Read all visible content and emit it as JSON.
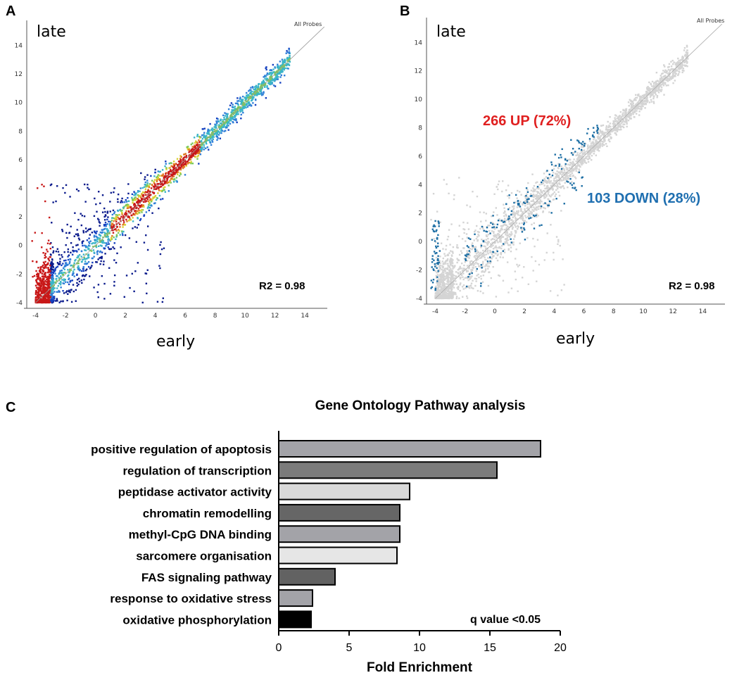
{
  "chart_data": [
    {
      "type": "scatter",
      "panel": "A",
      "xlabel": "early",
      "ylabel": "late",
      "series_label": "All Probes",
      "annotation": "R2 = 0.98",
      "xlim": [
        -4.5,
        15.5
      ],
      "ylim": [
        -4.2,
        15.5
      ],
      "x_ticks": [
        -4,
        -2,
        0,
        2,
        4,
        6,
        8,
        10,
        12,
        14
      ],
      "y_ticks": [
        -4,
        -2,
        0,
        2,
        4,
        6,
        8,
        10,
        12,
        14
      ],
      "coloring": "density heatmap (blue low, red high)",
      "r2": 0.98
    },
    {
      "type": "scatter",
      "panel": "B",
      "xlabel": "early",
      "ylabel": "late",
      "series_label": "All Probes",
      "annotation": "R2 = 0.98",
      "up_label": "266 UP (72%)",
      "down_label": "103 DOWN (28%)",
      "up_count": 266,
      "down_count": 103,
      "xlim": [
        -4.5,
        15.5
      ],
      "ylim": [
        -4.2,
        15.5
      ],
      "x_ticks": [
        -4,
        -2,
        0,
        2,
        4,
        6,
        8,
        10,
        12,
        14
      ],
      "y_ticks": [
        -4,
        -2,
        0,
        2,
        4,
        6,
        8,
        10,
        12,
        14
      ],
      "r2": 0.98
    },
    {
      "type": "bar",
      "panel": "C",
      "orientation": "horizontal",
      "title": "Gene Ontology Pathway analysis",
      "xlabel": "Fold Enrichment",
      "xlim": [
        0,
        20
      ],
      "x_ticks": [
        0,
        5,
        10,
        15,
        20
      ],
      "annotation": "q value <0.05",
      "categories": [
        "positive regulation of apoptosis",
        "regulation of transcription",
        "peptidase activator activity",
        "chromatin remodelling",
        "methyl-CpG DNA binding",
        "sarcomere organisation",
        "FAS signaling pathway",
        "response to oxidative stress",
        "oxidative phosphorylation"
      ],
      "values": [
        18.6,
        15.5,
        9.3,
        8.6,
        8.6,
        8.4,
        4.0,
        2.4,
        2.3
      ],
      "colors": [
        "#a3a3a8",
        "#7b7b7b",
        "#d9d9d9",
        "#666666",
        "#a3a3a8",
        "#e6e6e6",
        "#626262",
        "#a3a3a8",
        "#000000"
      ]
    }
  ],
  "labels": {
    "a": "A",
    "b": "B",
    "c": "C"
  },
  "colors": {
    "up": "#e02020",
    "down": "#1f6fb0",
    "grey_points": "#d4d4d4",
    "blue_points": "#1c6ea4"
  }
}
